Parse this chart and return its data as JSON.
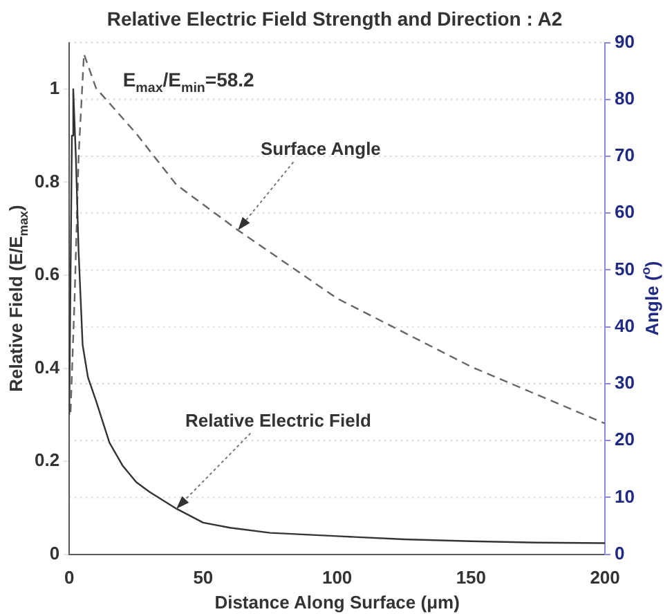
{
  "chart_data": {
    "type": "line",
    "title": "Relative Electric Field Strength and Direction : A2",
    "xlabel": "Distance Along Surface (μm)",
    "ylabel": "Relative Field (E/E$_{max}$)",
    "y2label": "Angle ($^{o}$)",
    "xlim": [
      0,
      200
    ],
    "xticks": [
      0,
      50,
      100,
      150,
      200
    ],
    "ylim": [
      0,
      1.1
    ],
    "yticks": [
      0,
      0.2,
      0.4,
      0.6,
      0.8,
      1
    ],
    "y2lim": [
      0,
      90
    ],
    "y2ticks": [
      0,
      10,
      20,
      30,
      40,
      50,
      60,
      70,
      80,
      90
    ],
    "grid": "y",
    "legend": false,
    "marker": "none",
    "series": [
      {
        "color": "#333333",
        "line_style": "solid",
        "x": [
          0,
          1,
          1.5,
          2.5,
          3.5,
          5,
          7,
          10,
          15,
          20,
          25,
          30,
          40,
          50,
          60,
          75,
          100,
          125,
          150,
          175,
          200
        ],
        "values": [
          0.3,
          0.9,
          1.0,
          0.85,
          0.65,
          0.45,
          0.38,
          0.33,
          0.24,
          0.19,
          0.155,
          0.134,
          0.098,
          0.068,
          0.057,
          0.046,
          0.039,
          0.032,
          0.028,
          0.025,
          0.024
        ]
      },
      {
        "color": "#666666",
        "line_style": "dashed",
        "axis": "y2",
        "x": [
          0.5,
          2,
          3.5,
          5.5,
          10,
          25,
          40,
          63,
          100,
          150,
          200
        ],
        "values": [
          25,
          45,
          70,
          88,
          82,
          74,
          65,
          57,
          45,
          33,
          23
        ]
      }
    ],
    "annotations": [
      "E$_{max}$/E$_{min}$=58.2",
      {
        "text": "Surface Angle",
        "x": 63,
        "y": 0.697
      },
      {
        "text": "Relative Electric Field",
        "x": 40,
        "y": 0.098
      }
    ]
  }
}
